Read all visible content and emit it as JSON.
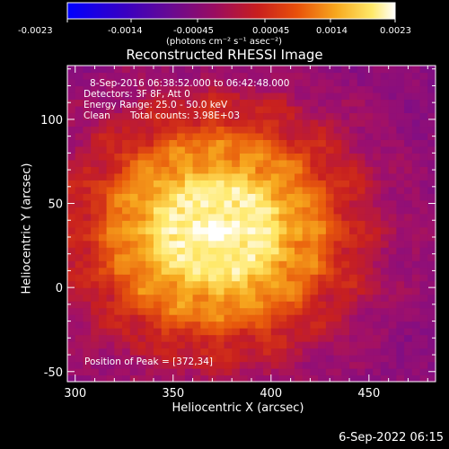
{
  "colorbar": {
    "tick_labels": [
      "-0.0023",
      "-0.0014",
      "-0.00045",
      "0.00045",
      "0.0014",
      "0.0023"
    ],
    "units_label": "(photons cm⁻² s⁻¹ asec⁻²)",
    "range": [
      -0.0023,
      0.0023
    ]
  },
  "chart_data": {
    "type": "heatmap",
    "title": "Reconstructed RHESSI Image",
    "xlabel": "Heliocentric X (arcsec)",
    "ylabel": "Heliocentric Y (arcsec)",
    "xlim": [
      296,
      484
    ],
    "ylim": [
      -56,
      132
    ],
    "x_ticks": [
      300,
      350,
      400,
      450
    ],
    "y_ticks": [
      -50,
      0,
      50,
      100
    ],
    "peak": {
      "x": 372,
      "y": 34
    },
    "colormap": [
      "#0000ff",
      "#5a00c8",
      "#7a0d8a",
      "#a0106a",
      "#c8201f",
      "#e85a0c",
      "#f7a81e",
      "#ffe96a",
      "#ffffff"
    ],
    "annotations": {
      "time_range": "8-Sep-2016 06:38:52.000 to 06:42:48.000",
      "detectors": "Detectors: 3F 8F, Att 0",
      "energy_range": "Energy Range: 25.0 - 50.0 keV",
      "method": "Clean",
      "total_counts": "Total counts: 3.98E+03",
      "peak_position": "Position of Peak = [372,34]"
    }
  },
  "footer": {
    "date": "6-Sep-2022 06:15"
  }
}
